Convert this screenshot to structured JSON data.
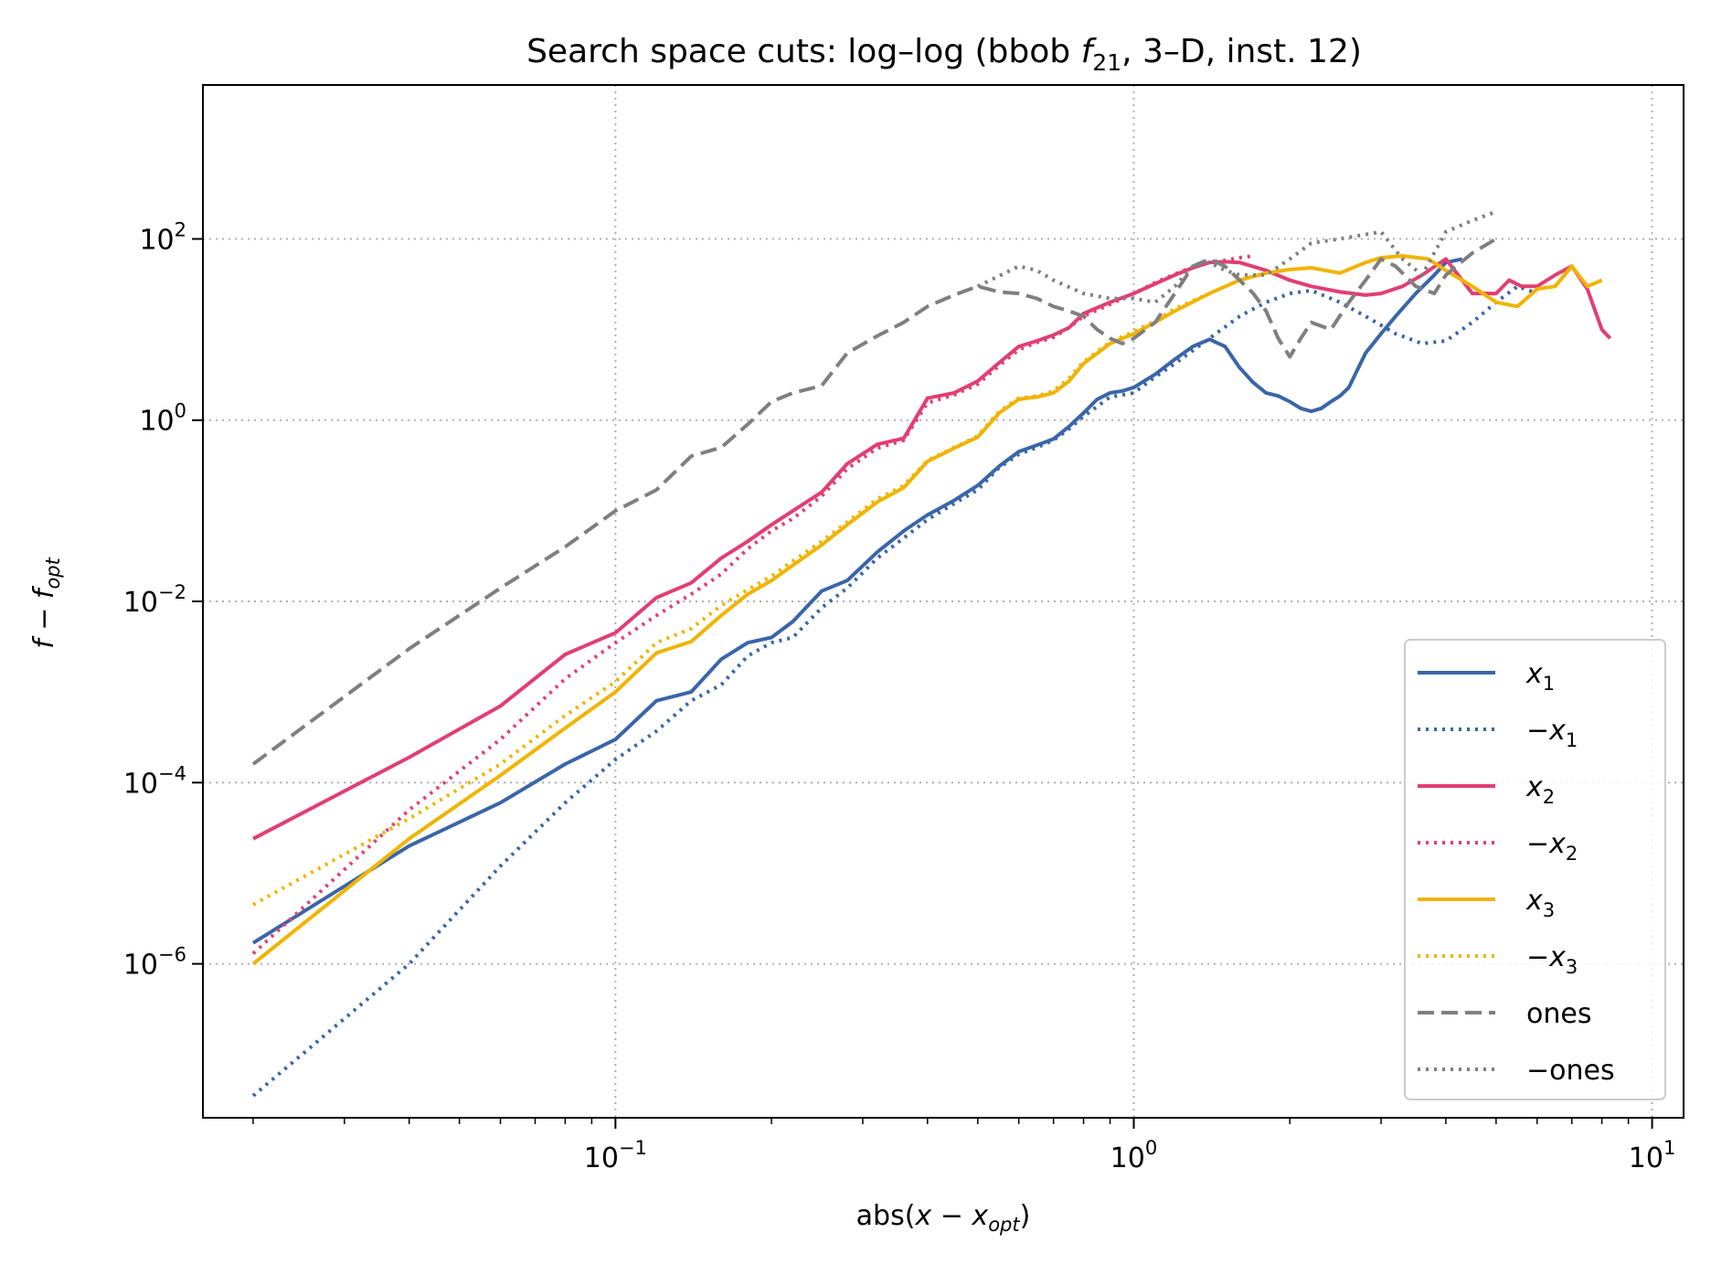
{
  "chart_data": {
    "type": "line",
    "title": "Search space cuts: log–log (bbob f21, 3–D, inst. 12)",
    "title_parts": {
      "before": "Search space cuts: log–log (bbob ",
      "f": "f",
      "sub": "21",
      "after": ", 3–D, inst. 12)"
    },
    "xlabel": "abs(x − x_opt)",
    "xlabel_parts": {
      "before": "abs(",
      "x": "x",
      "minus": " − ",
      "x2": "x",
      "sub": "opt",
      "after": ")"
    },
    "ylabel": "f − f_opt",
    "ylabel_parts": {
      "f": "f",
      "minus": " − ",
      "f2": "f",
      "sub": "opt"
    },
    "x_scale": "log",
    "y_scale": "log",
    "xlim": [
      0.016,
      11.5
    ],
    "ylim": [
      2e-08,
      5000.0
    ],
    "x_ticks": [
      {
        "value": 0.1,
        "base": "10",
        "exp": "−1"
      },
      {
        "value": 1,
        "base": "10",
        "exp": "0"
      },
      {
        "value": 10,
        "base": "10",
        "exp": "1"
      }
    ],
    "y_ticks": [
      {
        "value": 1e-06,
        "base": "10",
        "exp": "−6"
      },
      {
        "value": 0.0001,
        "base": "10",
        "exp": "−4"
      },
      {
        "value": 0.01,
        "base": "10",
        "exp": "−2"
      },
      {
        "value": 1,
        "base": "10",
        "exp": "0"
      },
      {
        "value": 100,
        "base": "10",
        "exp": "2"
      }
    ],
    "grid": true,
    "legend_position": "bottom-right",
    "series": [
      {
        "name": "x1",
        "label_prefix": "",
        "label_var": "x",
        "label_sub": "1",
        "color": "#3a65a8",
        "dash": "solid",
        "x": [
          0.02,
          0.04,
          0.06,
          0.08,
          0.1,
          0.12,
          0.14,
          0.16,
          0.18,
          0.2,
          0.22,
          0.25,
          0.28,
          0.32,
          0.36,
          0.4,
          0.45,
          0.5,
          0.55,
          0.6,
          0.65,
          0.7,
          0.75,
          0.8,
          0.85,
          0.9,
          0.95,
          1.0,
          1.1,
          1.2,
          1.3,
          1.4,
          1.5,
          1.6,
          1.7,
          1.8,
          1.9,
          2.0,
          2.1,
          2.2,
          2.3,
          2.4,
          2.5,
          2.6,
          2.8,
          3.0,
          3.2,
          3.5,
          3.8,
          4.0,
          4.3
        ],
        "y": [
          1.7e-06,
          2e-05,
          6e-05,
          0.00016,
          0.0003,
          0.0008,
          0.001,
          0.0023,
          0.0035,
          0.004,
          0.006,
          0.013,
          0.017,
          0.035,
          0.06,
          0.09,
          0.13,
          0.19,
          0.31,
          0.45,
          0.53,
          0.62,
          0.85,
          1.2,
          1.7,
          2.0,
          2.1,
          2.3,
          3.2,
          4.7,
          6.5,
          7.8,
          6.5,
          3.8,
          2.6,
          2.0,
          1.85,
          1.6,
          1.35,
          1.25,
          1.35,
          1.6,
          1.85,
          2.3,
          5.5,
          9.0,
          14,
          25,
          40,
          55,
          60
        ]
      },
      {
        "name": "−x1",
        "label_prefix": "−",
        "label_var": "x",
        "label_sub": "1",
        "color": "#3a65a8",
        "dash": "dotted",
        "x": [
          0.02,
          0.04,
          0.06,
          0.08,
          0.1,
          0.12,
          0.14,
          0.16,
          0.18,
          0.2,
          0.22,
          0.25,
          0.28,
          0.32,
          0.36,
          0.4,
          0.45,
          0.5,
          0.55,
          0.6,
          0.65,
          0.7,
          0.75,
          0.8,
          0.9,
          1.0,
          1.1,
          1.2,
          1.4,
          1.6,
          1.8,
          2.0,
          2.2,
          2.5,
          2.8,
          3.2,
          3.6,
          4.0,
          4.5,
          5.0,
          5.5,
          6.0
        ],
        "y": [
          3.5e-08,
          1e-06,
          1.2e-05,
          6e-05,
          0.00018,
          0.00037,
          0.0008,
          0.0012,
          0.0025,
          0.0035,
          0.004,
          0.0085,
          0.014,
          0.03,
          0.05,
          0.08,
          0.12,
          0.17,
          0.3,
          0.42,
          0.5,
          0.6,
          0.8,
          1.1,
          1.8,
          2.0,
          3.0,
          4.2,
          8.0,
          14,
          20,
          25,
          27,
          20,
          14,
          9,
          7,
          7.5,
          12,
          20,
          30,
          25
        ]
      },
      {
        "name": "x2",
        "label_prefix": "",
        "label_var": "x",
        "label_sub": "2",
        "color": "#e23e73",
        "dash": "solid",
        "x": [
          0.02,
          0.04,
          0.06,
          0.08,
          0.1,
          0.12,
          0.14,
          0.16,
          0.18,
          0.2,
          0.22,
          0.25,
          0.28,
          0.32,
          0.36,
          0.4,
          0.45,
          0.5,
          0.55,
          0.6,
          0.65,
          0.7,
          0.75,
          0.8,
          0.9,
          1.0,
          1.1,
          1.2,
          1.3,
          1.4,
          1.5,
          1.6,
          1.8,
          2.0,
          2.2,
          2.5,
          2.8,
          3.0,
          3.3,
          3.6,
          4.0,
          4.5,
          5.0,
          5.3,
          5.6,
          6.0,
          6.5,
          7.0,
          7.5,
          8.0,
          8.3
        ],
        "y": [
          2.4e-05,
          0.00019,
          0.0007,
          0.0026,
          0.0045,
          0.011,
          0.016,
          0.03,
          0.046,
          0.07,
          0.1,
          0.16,
          0.33,
          0.54,
          0.63,
          1.75,
          2.0,
          2.7,
          4.3,
          6.5,
          7.5,
          8.7,
          10.5,
          15,
          20,
          25,
          32,
          40,
          48,
          55,
          56,
          55,
          45,
          35,
          30,
          26,
          24,
          25,
          30,
          40,
          60,
          25,
          25,
          35,
          30,
          30,
          40,
          50,
          28,
          10,
          8
        ]
      },
      {
        "name": "−x2",
        "label_prefix": "−",
        "label_var": "x",
        "label_sub": "2",
        "color": "#e23e73",
        "dash": "dotted",
        "x": [
          0.02,
          0.04,
          0.06,
          0.08,
          0.1,
          0.12,
          0.14,
          0.16,
          0.18,
          0.2,
          0.22,
          0.25,
          0.28,
          0.32,
          0.36,
          0.4,
          0.45,
          0.5,
          0.55,
          0.6,
          0.65,
          0.7,
          0.75,
          0.8,
          0.9,
          1.0,
          1.1,
          1.2,
          1.3,
          1.4,
          1.5,
          1.6,
          1.7
        ],
        "y": [
          1.3e-06,
          5e-05,
          0.0003,
          0.0014,
          0.0035,
          0.007,
          0.012,
          0.02,
          0.038,
          0.06,
          0.082,
          0.145,
          0.29,
          0.49,
          0.6,
          1.55,
          1.9,
          2.5,
          4.0,
          6.0,
          7.2,
          8.2,
          10.5,
          14,
          19,
          25,
          33,
          41,
          49,
          55,
          58,
          62,
          65
        ]
      },
      {
        "name": "x3",
        "label_prefix": "",
        "label_var": "x",
        "label_sub": "3",
        "color": "#f0b400",
        "dash": "solid",
        "x": [
          0.02,
          0.04,
          0.06,
          0.08,
          0.1,
          0.12,
          0.14,
          0.16,
          0.18,
          0.2,
          0.22,
          0.25,
          0.28,
          0.32,
          0.36,
          0.4,
          0.45,
          0.5,
          0.55,
          0.6,
          0.65,
          0.7,
          0.75,
          0.8,
          0.9,
          1.0,
          1.1,
          1.2,
          1.4,
          1.6,
          1.8,
          2.0,
          2.2,
          2.5,
          2.8,
          3.0,
          3.3,
          3.7,
          4.0,
          4.5,
          5.0,
          5.5,
          6.0,
          6.5,
          7.0,
          7.5,
          8.0
        ],
        "y": [
          1e-06,
          2.4e-05,
          0.00012,
          0.0004,
          0.001,
          0.0027,
          0.0036,
          0.007,
          0.012,
          0.017,
          0.025,
          0.042,
          0.07,
          0.125,
          0.18,
          0.35,
          0.49,
          0.65,
          1.2,
          1.7,
          1.8,
          2.0,
          2.7,
          4.2,
          7.0,
          9.0,
          12,
          16,
          25,
          35,
          42,
          46,
          48,
          42,
          55,
          62,
          65,
          60,
          45,
          30,
          20,
          18,
          28,
          30,
          50,
          30,
          35
        ]
      },
      {
        "name": "−x3",
        "label_prefix": "−",
        "label_var": "x",
        "label_sub": "3",
        "color": "#f0b400",
        "dash": "dotted",
        "x": [
          0.02,
          0.04,
          0.06,
          0.08,
          0.1,
          0.12,
          0.14,
          0.16,
          0.18,
          0.2,
          0.22,
          0.25,
          0.28,
          0.32,
          0.36,
          0.4,
          0.45,
          0.5,
          0.55,
          0.6,
          0.65,
          0.7,
          0.75,
          0.8,
          0.9,
          1.0,
          1.1,
          1.2,
          1.4
        ],
        "y": [
          4.5e-06,
          4e-05,
          0.00016,
          0.00055,
          0.0013,
          0.0035,
          0.005,
          0.009,
          0.0135,
          0.019,
          0.028,
          0.046,
          0.075,
          0.135,
          0.19,
          0.36,
          0.5,
          0.67,
          1.25,
          1.75,
          1.85,
          2.1,
          2.9,
          4.4,
          7.3,
          9.5,
          12.5,
          17,
          25
        ]
      },
      {
        "name": "ones",
        "label_prefix": "",
        "label_var": "ones",
        "label_sub": "",
        "color": "#7f7f7f",
        "dash": "dashed",
        "x": [
          0.02,
          0.04,
          0.06,
          0.08,
          0.1,
          0.12,
          0.14,
          0.16,
          0.18,
          0.2,
          0.22,
          0.25,
          0.28,
          0.32,
          0.36,
          0.4,
          0.45,
          0.5,
          0.55,
          0.6,
          0.65,
          0.7,
          0.75,
          0.8,
          0.85,
          0.9,
          0.95,
          1.0,
          1.1,
          1.2,
          1.3,
          1.4,
          1.5,
          1.6,
          1.7,
          1.8,
          1.9,
          2.0,
          2.1,
          2.2,
          2.4,
          2.6,
          2.8,
          3.0,
          3.2,
          3.5,
          3.8,
          4.0,
          4.5,
          5.0
        ],
        "y": [
          0.00016,
          0.003,
          0.014,
          0.04,
          0.1,
          0.17,
          0.4,
          0.5,
          0.9,
          1.6,
          2.0,
          2.4,
          5.5,
          8.5,
          12,
          18,
          24,
          30,
          26,
          25,
          22,
          18,
          16,
          14,
          10,
          8,
          7,
          8,
          12,
          25,
          50,
          60,
          50,
          35,
          25,
          16,
          8,
          5,
          8,
          12,
          10,
          20,
          35,
          60,
          50,
          30,
          25,
          40,
          70,
          100
        ]
      },
      {
        "name": "−ones",
        "label_prefix": "−",
        "label_var": "ones",
        "label_sub": "",
        "color": "#7f7f7f",
        "dash": "dotted",
        "x": [
          0.5,
          0.6,
          0.65,
          0.7,
          0.8,
          0.9,
          1.0,
          1.1,
          1.2,
          1.3,
          1.4,
          1.5,
          1.6,
          1.8,
          2.0,
          2.2,
          2.5,
          3.0,
          3.3,
          3.6,
          4.0,
          4.5,
          5.0
        ],
        "y": [
          30,
          50,
          45,
          35,
          25,
          22,
          22,
          20,
          30,
          50,
          55,
          45,
          40,
          40,
          60,
          90,
          100,
          120,
          60,
          40,
          120,
          160,
          200
        ]
      }
    ]
  }
}
